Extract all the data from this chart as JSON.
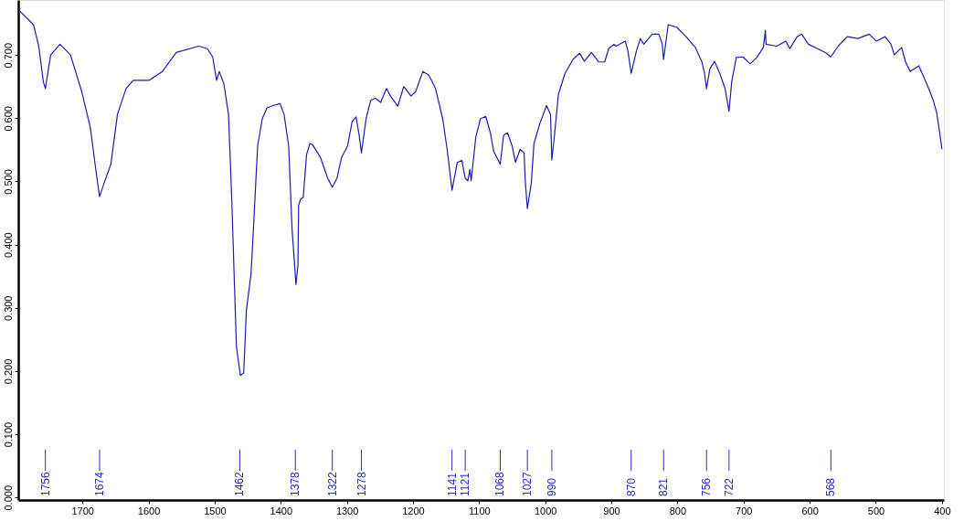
{
  "chart_data": {
    "type": "line",
    "x": [
      1796,
      1774,
      1766,
      1759,
      1756,
      1748,
      1734,
      1718,
      1701,
      1688,
      1678,
      1674,
      1667,
      1657,
      1647,
      1634,
      1623,
      1599,
      1579,
      1558,
      1524,
      1511,
      1503,
      1497,
      1493,
      1486,
      1479,
      1474,
      1471,
      1467,
      1461,
      1456,
      1452,
      1445,
      1442,
      1435,
      1428,
      1421,
      1412,
      1401,
      1395,
      1388,
      1383,
      1377,
      1374,
      1373,
      1370,
      1366,
      1361,
      1356,
      1352,
      1340,
      1329,
      1322,
      1315,
      1308,
      1299,
      1292,
      1286,
      1281,
      1278,
      1271,
      1264,
      1257,
      1249,
      1240,
      1234,
      1223,
      1214,
      1203,
      1196,
      1185,
      1176,
      1166,
      1155,
      1148,
      1141,
      1133,
      1126,
      1121,
      1117,
      1114,
      1112,
      1105,
      1098,
      1090,
      1083,
      1078,
      1068,
      1063,
      1057,
      1050,
      1045,
      1038,
      1032,
      1030,
      1027,
      1021,
      1017,
      1008,
      998,
      992,
      990,
      986,
      980,
      970,
      958,
      948,
      941,
      930,
      919,
      910,
      904,
      896,
      893,
      879,
      875,
      870,
      862,
      856,
      851,
      838,
      828,
      823,
      821,
      814,
      801,
      787,
      773,
      763,
      759,
      756,
      751,
      744,
      736,
      728,
      722,
      718,
      711,
      701,
      690,
      680,
      670,
      667,
      666,
      650,
      636,
      630,
      619,
      612,
      602,
      588,
      575,
      568,
      557,
      543,
      527,
      510,
      499,
      486,
      477,
      472,
      461,
      455,
      448,
      435,
      427,
      420,
      413,
      408,
      404,
      400
    ],
    "series": [
      {
        "color": "#1c1cb0",
        "values": [
          0.771,
          0.748,
          0.714,
          0.657,
          0.647,
          0.7,
          0.717,
          0.7,
          0.642,
          0.585,
          0.505,
          0.476,
          0.498,
          0.527,
          0.606,
          0.647,
          0.66,
          0.66,
          0.674,
          0.704,
          0.714,
          0.71,
          0.697,
          0.66,
          0.674,
          0.654,
          0.606,
          0.469,
          0.368,
          0.238,
          0.193,
          0.197,
          0.296,
          0.353,
          0.411,
          0.556,
          0.599,
          0.616,
          0.62,
          0.623,
          0.606,
          0.556,
          0.426,
          0.337,
          0.368,
          0.462,
          0.472,
          0.475,
          0.542,
          0.56,
          0.558,
          0.538,
          0.505,
          0.491,
          0.505,
          0.538,
          0.556,
          0.595,
          0.602,
          0.57,
          0.545,
          0.599,
          0.628,
          0.632,
          0.625,
          0.647,
          0.635,
          0.619,
          0.65,
          0.635,
          0.642,
          0.674,
          0.668,
          0.647,
          0.599,
          0.548,
          0.486,
          0.53,
          0.533,
          0.505,
          0.501,
          0.519,
          0.501,
          0.57,
          0.599,
          0.603,
          0.577,
          0.548,
          0.527,
          0.573,
          0.577,
          0.556,
          0.53,
          0.551,
          0.545,
          0.498,
          0.457,
          0.498,
          0.56,
          0.592,
          0.62,
          0.606,
          0.534,
          0.573,
          0.638,
          0.671,
          0.693,
          0.703,
          0.69,
          0.704,
          0.689,
          0.689,
          0.71,
          0.717,
          0.714,
          0.722,
          0.707,
          0.671,
          0.707,
          0.726,
          0.717,
          0.733,
          0.733,
          0.717,
          0.693,
          0.748,
          0.744,
          0.729,
          0.712,
          0.689,
          0.671,
          0.647,
          0.678,
          0.69,
          0.671,
          0.647,
          0.611,
          0.657,
          0.696,
          0.697,
          0.686,
          0.696,
          0.712,
          0.739,
          0.717,
          0.714,
          0.722,
          0.71,
          0.729,
          0.733,
          0.717,
          0.71,
          0.703,
          0.697,
          0.714,
          0.729,
          0.726,
          0.733,
          0.722,
          0.729,
          0.717,
          0.7,
          0.712,
          0.689,
          0.674,
          0.683,
          0.664,
          0.647,
          0.628,
          0.609,
          0.582,
          0.551
        ]
      }
    ],
    "xlim": [
      1797,
      397
    ],
    "xticks": [
      1700,
      1600,
      1500,
      1400,
      1300,
      1200,
      1100,
      1000,
      900,
      800,
      700,
      600,
      500,
      400
    ],
    "ylim": [
      -0.004,
      0.787
    ],
    "yticks": [
      {
        "value": 0,
        "label": "0.000"
      },
      {
        "value": 0.1,
        "label": "0.100"
      },
      {
        "value": 0.2,
        "label": "0.200"
      },
      {
        "value": 0.3,
        "label": "0.300"
      },
      {
        "value": 0.4,
        "label": "0.400"
      },
      {
        "value": 0.5,
        "label": "0.500"
      },
      {
        "value": 0.6,
        "label": "0.600"
      },
      {
        "value": 0.7,
        "label": "0.700"
      }
    ],
    "annotations": [
      {
        "text": "1756",
        "x": 1756
      },
      {
        "text": "1674",
        "x": 1674
      },
      {
        "text": "1462",
        "x": 1462
      },
      {
        "text": "1378",
        "x": 1378
      },
      {
        "text": "1322",
        "x": 1322
      },
      {
        "text": "1278",
        "x": 1278
      },
      {
        "text": "1141",
        "x": 1141
      },
      {
        "text": "1121",
        "x": 1121
      },
      {
        "text": "1068",
        "x": 1068
      },
      {
        "text": "1027",
        "x": 1027
      },
      {
        "text": "990",
        "x": 990
      },
      {
        "text": "870",
        "x": 870
      },
      {
        "text": "821",
        "x": 821
      },
      {
        "text": "756",
        "x": 756
      },
      {
        "text": "722",
        "x": 722
      },
      {
        "text": "568",
        "x": 568
      }
    ]
  }
}
